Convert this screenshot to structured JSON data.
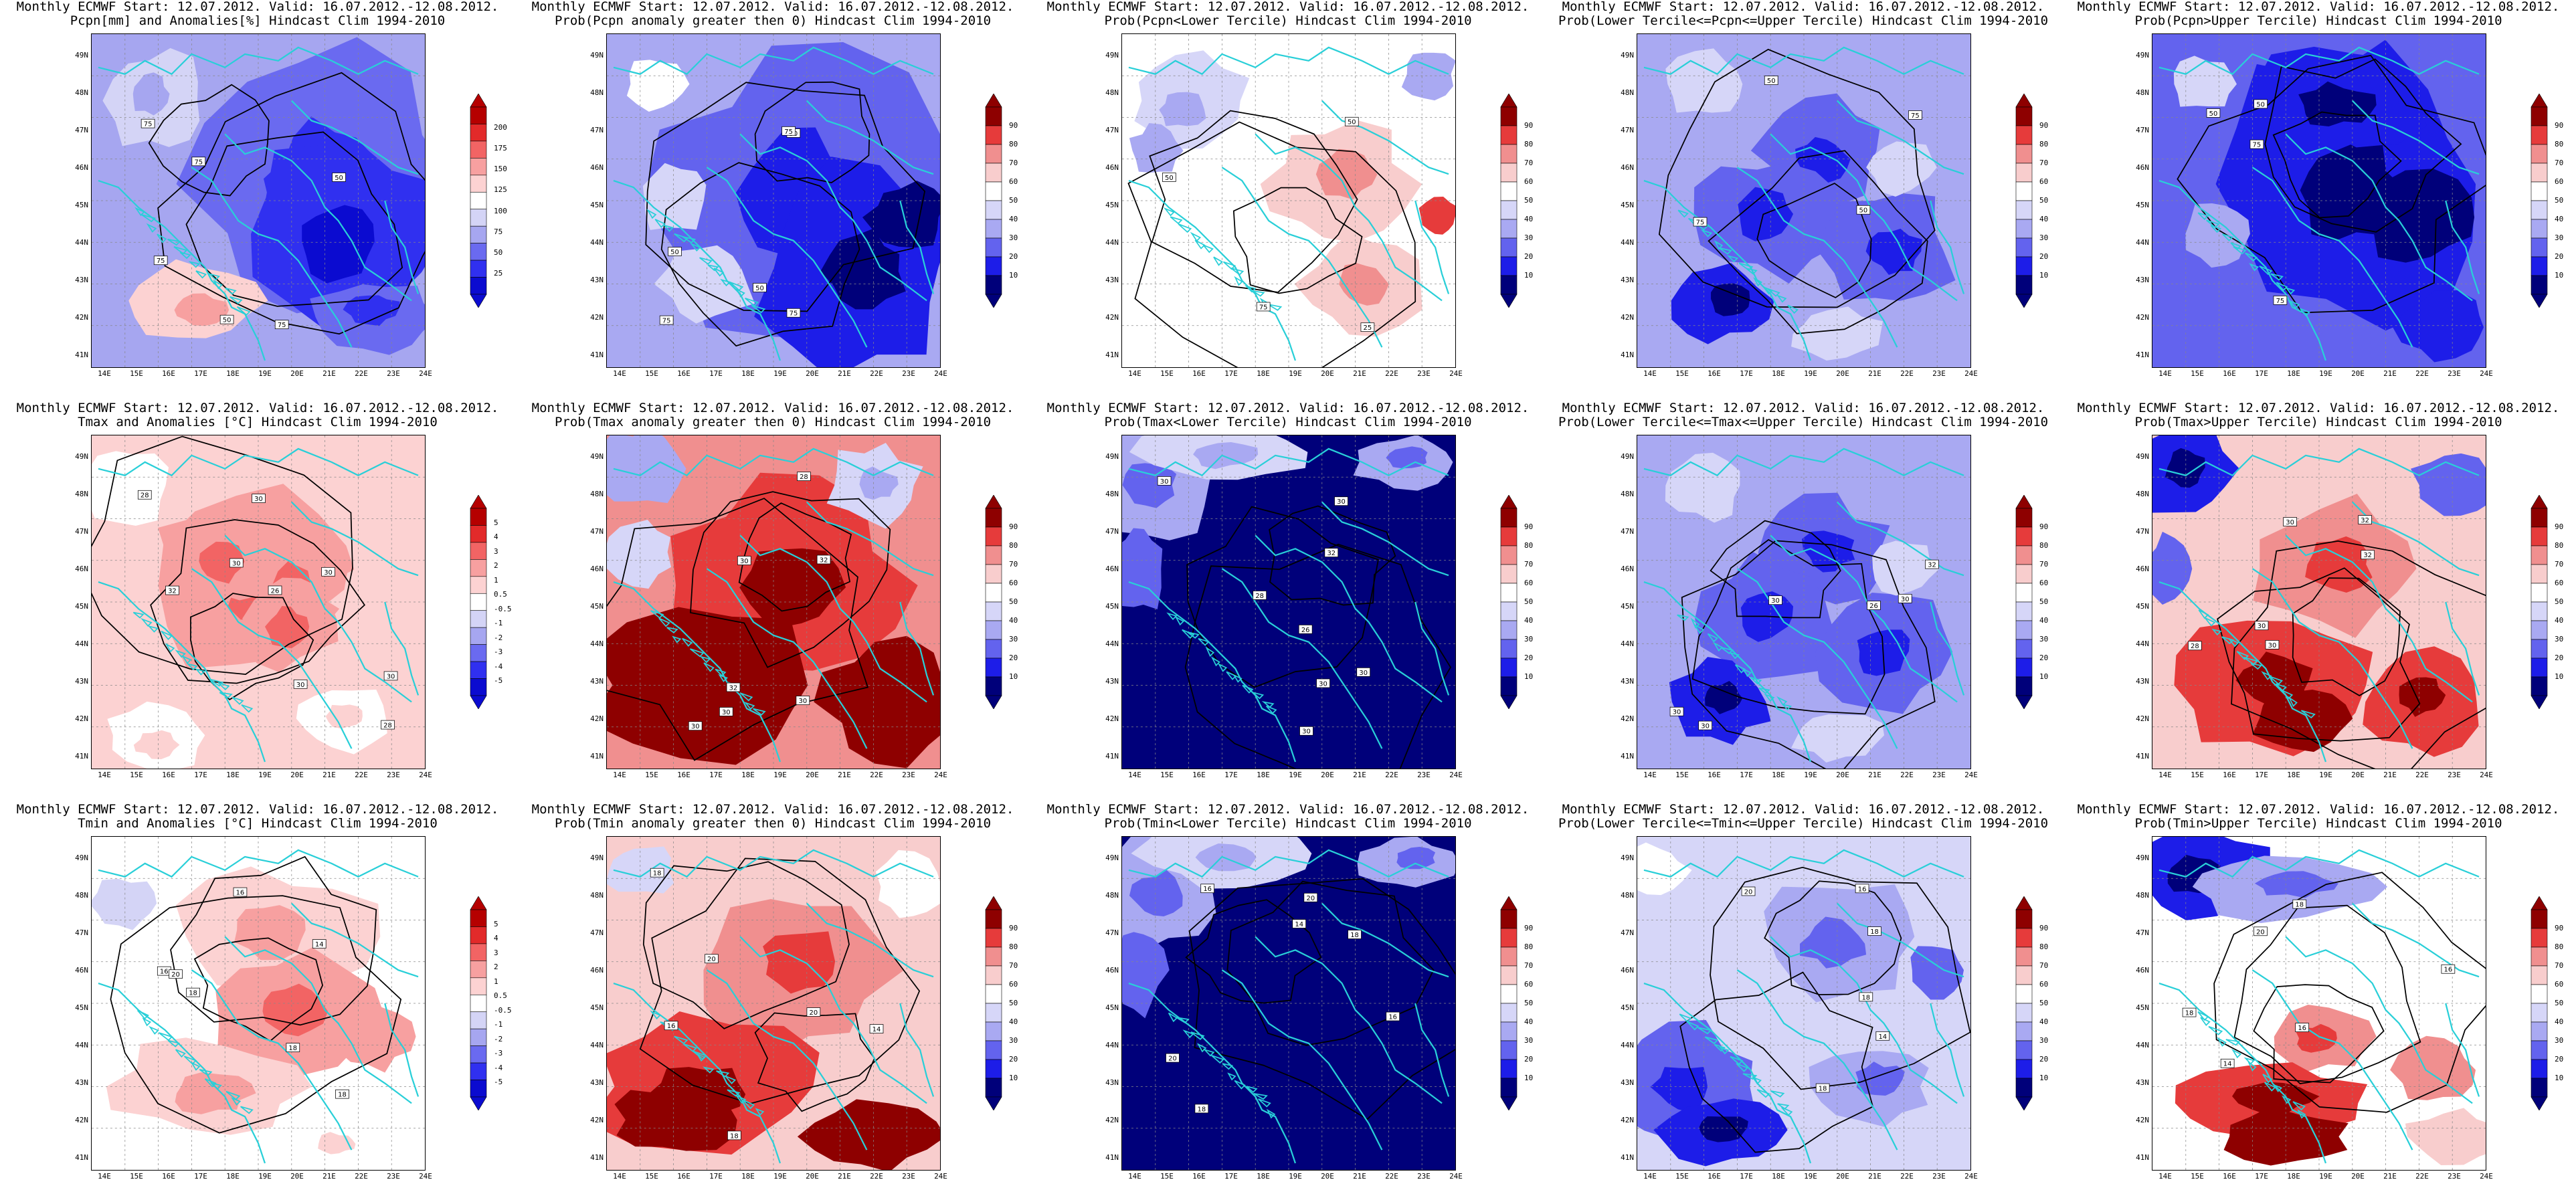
{
  "line1": "Monthly ECMWF Start: 12.07.2012. Valid: 16.07.2012.-12.08.2012.",
  "lat_labels": [
    "49N",
    "48N",
    "47N",
    "46N",
    "45N",
    "44N",
    "43N",
    "42N",
    "41N"
  ],
  "lon_labels": [
    "14E",
    "15E",
    "16E",
    "17E",
    "18E",
    "19E",
    "20E",
    "21E",
    "22E",
    "23E",
    "24E"
  ],
  "colors": {
    "anomaly_scale": [
      "#0b0bd0",
      "#3030f0",
      "#6a6af0",
      "#a6a6f0",
      "#d4d4f6",
      "#ffffff",
      "#fcd2d2",
      "#f7a0a0",
      "#f26464",
      "#e22a2a",
      "#b50000"
    ],
    "prob_scale": [
      "#00007a",
      "#1d1de8",
      "#6363ee",
      "#a9a9f2",
      "#d6d6f8",
      "#ffffff",
      "#f8cdcd",
      "#f08f8f",
      "#e63b3b",
      "#8e0000"
    ],
    "coast": "#29cfd8",
    "contour": "#000000"
  },
  "legends": {
    "precip": [
      "200",
      "175",
      "150",
      "125",
      "100",
      "75",
      "50",
      "25"
    ],
    "temp": [
      "5",
      "4",
      "3",
      "2",
      "1",
      "0.5",
      "-0.5",
      "-1",
      "-2",
      "-3",
      "-4",
      "-5"
    ],
    "prob": [
      "90",
      "80",
      "70",
      "60",
      "50",
      "40",
      "30",
      "20",
      "10"
    ]
  },
  "panels": [
    {
      "title": "Pcpn[mm] and Anomalies[%] Hindcast Clim 1994-2010",
      "legend": "precip",
      "pattern": "pcpn_anom",
      "contours": [
        "50",
        "50",
        "75",
        "75",
        "75",
        "75"
      ]
    },
    {
      "title": "Prob(Pcpn anomaly greater then 0) Hindcast Clim 1994-2010",
      "legend": "prob",
      "pattern": "mostly_blue",
      "contours": [
        "50",
        "50",
        "75",
        "75",
        "75",
        "50"
      ]
    },
    {
      "title": "Prob(Pcpn<Lower Tercile) Hindcast Clim 1994-2010",
      "legend": "prob",
      "pattern": "light_pink",
      "contours": [
        "50",
        "25",
        "50",
        "75"
      ]
    },
    {
      "title": "Prob(Lower Tercile<=Pcpn<=Upper Tercile) Hindcast Clim 1994-2010",
      "legend": "prob",
      "pattern": "mixed_blue",
      "contours": [
        "50",
        "75",
        "75",
        "50"
      ]
    },
    {
      "title": "Prob(Pcpn>Upper Tercile) Hindcast Clim 1994-2010",
      "legend": "prob",
      "pattern": "deep_blue",
      "contours": [
        "50",
        "75",
        "75",
        "50"
      ]
    },
    {
      "title": "Tmax and Anomalies [°C] Hindcast Clim 1994-2010",
      "legend": "temp",
      "pattern": "temp_anom",
      "contours": [
        "28",
        "30",
        "26",
        "30",
        "30",
        "28",
        "30",
        "30",
        "32"
      ]
    },
    {
      "title": "Prob(Tmax anomaly greater then 0) Hindcast Clim 1994-2010",
      "legend": "prob",
      "pattern": "red_heavy",
      "contours": [
        "28",
        "30",
        "30",
        "30",
        "30",
        "32",
        "32"
      ]
    },
    {
      "title": "Prob(Tmax<Lower Tercile) Hindcast Clim 1994-2010",
      "legend": "prob",
      "pattern": "navy",
      "contours": [
        "28",
        "30",
        "26",
        "30",
        "30",
        "30",
        "32",
        "30"
      ]
    },
    {
      "title": "Prob(Lower Tercile<=Tmax<=Upper Tercile) Hindcast Clim 1994-2010",
      "legend": "prob",
      "pattern": "mixed_blue",
      "contours": [
        "30",
        "26",
        "30",
        "30",
        "30",
        "32"
      ]
    },
    {
      "title": "Prob(Tmax>Upper Tercile) Hindcast Clim 1994-2010",
      "legend": "prob",
      "pattern": "red_mixed",
      "contours": [
        "28",
        "30",
        "30",
        "30",
        "32",
        "32"
      ]
    },
    {
      "title": "Tmin and Anomalies [°C] Hindcast Clim 1994-2010",
      "legend": "temp",
      "pattern": "tmin_anom",
      "contours": [
        "16",
        "14",
        "18",
        "16",
        "18",
        "20",
        "18"
      ]
    },
    {
      "title": "Prob(Tmin anomaly greater then 0) Hindcast Clim 1994-2010",
      "legend": "prob",
      "pattern": "red_south",
      "contours": [
        "14",
        "18",
        "16",
        "18",
        "20",
        "20"
      ]
    },
    {
      "title": "Prob(Tmin<Lower Tercile) Hindcast Clim 1994-2010",
      "legend": "prob",
      "pattern": "navy",
      "contours": [
        "14",
        "16",
        "18",
        "16",
        "18",
        "20",
        "20"
      ]
    },
    {
      "title": "Prob(Lower Tercile<=Tmin<=Upper Tercile) Hindcast Clim 1994-2010",
      "legend": "prob",
      "pattern": "blue_south",
      "contours": [
        "14",
        "18",
        "16",
        "18",
        "20",
        "18"
      ]
    },
    {
      "title": "Prob(Tmin>Upper Tercile) Hindcast Clim 1994-2010",
      "legend": "prob",
      "pattern": "red_south2",
      "contours": [
        "16",
        "14",
        "18",
        "16",
        "18",
        "20"
      ]
    }
  ]
}
